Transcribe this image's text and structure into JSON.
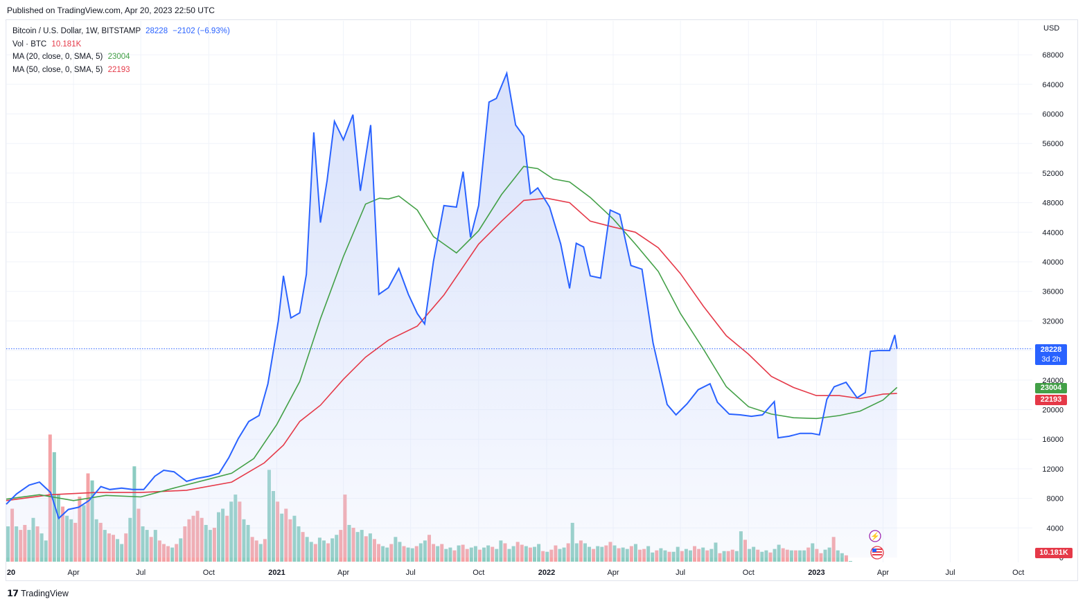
{
  "header": {
    "published": "Published on TradingView.com, Apr 20, 2023 22:50 UTC"
  },
  "legend": {
    "symbol": "Bitcoin / U.S. Dollar, 1W, BITSTAMP",
    "last_price": "28228",
    "change": "−2102 (−6.93%)",
    "vol_label": "Vol · BTC",
    "vol_value": "10.181K",
    "ma20_label": "MA (20, close, 0, SMA, 5)",
    "ma20_value": "23004",
    "ma50_label": "MA (50, close, 0, SMA, 5)",
    "ma50_value": "22193"
  },
  "axis": {
    "currency": "USD",
    "price_ticks": [
      "68000",
      "64000",
      "60000",
      "56000",
      "52000",
      "48000",
      "44000",
      "40000",
      "36000",
      "32000",
      "28000",
      "24000",
      "20000",
      "16000",
      "12000",
      "8000",
      "4000",
      "0"
    ],
    "time_ticks": [
      {
        "label": "20",
        "bold": true
      },
      {
        "label": "Apr",
        "bold": false
      },
      {
        "label": "Jul",
        "bold": false
      },
      {
        "label": "Oct",
        "bold": false
      },
      {
        "label": "2021",
        "bold": true
      },
      {
        "label": "Apr",
        "bold": false
      },
      {
        "label": "Jul",
        "bold": false
      },
      {
        "label": "Oct",
        "bold": false
      },
      {
        "label": "2022",
        "bold": true
      },
      {
        "label": "Apr",
        "bold": false
      },
      {
        "label": "Jul",
        "bold": false
      },
      {
        "label": "Oct",
        "bold": false
      },
      {
        "label": "2023",
        "bold": true
      },
      {
        "label": "Apr",
        "bold": false
      },
      {
        "label": "Jul",
        "bold": false
      },
      {
        "label": "Oct",
        "bold": false
      }
    ]
  },
  "tags": {
    "price": "28228",
    "countdown": "3d 2h",
    "ma20": "23004",
    "ma50": "22193",
    "volume": "10.181K"
  },
  "colors": {
    "price_line": "#2962ff",
    "area_fill": "#d6e0fb",
    "ma20": "#43a047",
    "ma50": "#e53948",
    "vol_up": "#8cccc1",
    "vol_down": "#f4a3a6",
    "grid": "#f0f3fa"
  },
  "footer": {
    "brand": "TradingView",
    "logo": "tradingview-logo-icon"
  },
  "chart_data": {
    "type": "line",
    "title": "Bitcoin / U.S. Dollar, 1W, BITSTAMP",
    "ylabel": "USD",
    "ylim": [
      0,
      70000
    ],
    "x_start": "2020-01-01",
    "x_end": "2023-10-20",
    "series": [
      {
        "name": "Bitcoin / U.S. Dollar",
        "dates": [
          "2020-01-01",
          "2020-01-15",
          "2020-02-01",
          "2020-02-15",
          "2020-03-01",
          "2020-03-12",
          "2020-03-25",
          "2020-04-08",
          "2020-04-22",
          "2020-05-08",
          "2020-05-20",
          "2020-06-05",
          "2020-06-20",
          "2020-07-05",
          "2020-07-20",
          "2020-08-01",
          "2020-08-15",
          "2020-09-01",
          "2020-09-15",
          "2020-10-01",
          "2020-10-15",
          "2020-10-28",
          "2020-11-10",
          "2020-11-24",
          "2020-12-08",
          "2020-12-20",
          "2021-01-03",
          "2021-01-10",
          "2021-01-20",
          "2021-02-01",
          "2021-02-10",
          "2021-02-20",
          "2021-03-01",
          "2021-03-10",
          "2021-03-20",
          "2021-04-01",
          "2021-04-14",
          "2021-04-24",
          "2021-05-08",
          "2021-05-19",
          "2021-06-01",
          "2021-06-15",
          "2021-06-28",
          "2021-07-10",
          "2021-07-20",
          "2021-08-01",
          "2021-08-15",
          "2021-09-01",
          "2021-09-10",
          "2021-09-20",
          "2021-10-01",
          "2021-10-15",
          "2021-10-25",
          "2021-11-08",
          "2021-11-20",
          "2021-12-01",
          "2021-12-10",
          "2021-12-20",
          "2022-01-05",
          "2022-01-20",
          "2022-02-01",
          "2022-02-10",
          "2022-02-20",
          "2022-03-01",
          "2022-03-15",
          "2022-03-28",
          "2022-04-10",
          "2022-04-25",
          "2022-05-10",
          "2022-05-25",
          "2022-06-13",
          "2022-06-25",
          "2022-07-10",
          "2022-07-25",
          "2022-08-10",
          "2022-08-20",
          "2022-09-05",
          "2022-09-20",
          "2022-10-05",
          "2022-10-20",
          "2022-11-05",
          "2022-11-10",
          "2022-11-25",
          "2022-12-10",
          "2022-12-25",
          "2023-01-05",
          "2023-01-15",
          "2023-01-25",
          "2023-02-10",
          "2023-02-25",
          "2023-03-08",
          "2023-03-15",
          "2023-03-25",
          "2023-04-10",
          "2023-04-17",
          "2023-04-20"
        ],
        "values": [
          7200,
          8600,
          9800,
          10200,
          8800,
          5300,
          6500,
          6800,
          7700,
          9600,
          9200,
          9400,
          9200,
          9200,
          11000,
          11800,
          11600,
          10300,
          10700,
          11000,
          11400,
          13500,
          16100,
          18400,
          19200,
          23500,
          32000,
          38100,
          32400,
          33100,
          38300,
          57500,
          45300,
          51000,
          59000,
          56500,
          59900,
          49600,
          58500,
          35600,
          36500,
          39100,
          35600,
          33000,
          31600,
          40100,
          47600,
          47400,
          52200,
          43300,
          47600,
          61600,
          62100,
          65500,
          58500,
          57000,
          49200,
          50000,
          47400,
          42400,
          36400,
          42500,
          42000,
          38100,
          37800,
          47000,
          46400,
          39500,
          39000,
          29000,
          20700,
          19300,
          20800,
          22700,
          23500,
          21000,
          19400,
          19300,
          19100,
          19300,
          21100,
          16200,
          16400,
          16800,
          16800,
          16600,
          21400,
          23100,
          23700,
          21600,
          22300,
          27900,
          28000,
          28000,
          30100,
          28228
        ]
      },
      {
        "name": "MA (20, close, 0, SMA, 5)",
        "dates": [
          "2020-01-01",
          "2020-02-15",
          "2020-04-01",
          "2020-05-15",
          "2020-07-01",
          "2020-08-15",
          "2020-10-01",
          "2020-11-01",
          "2020-12-01",
          "2021-01-01",
          "2021-02-01",
          "2021-03-01",
          "2021-04-01",
          "2021-05-01",
          "2021-05-20",
          "2021-06-01",
          "2021-06-15",
          "2021-07-10",
          "2021-08-01",
          "2021-09-01",
          "2021-10-01",
          "2021-11-01",
          "2021-11-20",
          "2021-12-01",
          "2021-12-20",
          "2022-01-10",
          "2022-02-01",
          "2022-03-01",
          "2022-04-01",
          "2022-05-01",
          "2022-06-01",
          "2022-07-01",
          "2022-08-01",
          "2022-09-01",
          "2022-10-01",
          "2022-11-01",
          "2022-12-01",
          "2023-01-01",
          "2023-02-01",
          "2023-03-01",
          "2023-04-01",
          "2023-04-20"
        ],
        "values": [
          7900,
          8500,
          7700,
          8400,
          8200,
          9400,
          10600,
          11400,
          13400,
          18000,
          23800,
          32300,
          40700,
          47800,
          48600,
          48500,
          48900,
          47000,
          43400,
          41200,
          44200,
          49100,
          51500,
          52900,
          52600,
          51200,
          50800,
          48700,
          45800,
          42400,
          38700,
          33000,
          28200,
          23100,
          20400,
          19400,
          18900,
          18800,
          19200,
          19800,
          21300,
          23004
        ]
      },
      {
        "name": "MA (50, close, 0, SMA, 5)",
        "dates": [
          "2020-01-01",
          "2020-03-01",
          "2020-05-01",
          "2020-07-01",
          "2020-09-01",
          "2020-11-01",
          "2020-12-15",
          "2021-01-10",
          "2021-02-01",
          "2021-03-01",
          "2021-04-01",
          "2021-05-01",
          "2021-06-01",
          "2021-07-10",
          "2021-08-15",
          "2021-10-01",
          "2021-11-01",
          "2021-12-01",
          "2022-01-01",
          "2022-02-01",
          "2022-03-01",
          "2022-04-01",
          "2022-05-01",
          "2022-06-01",
          "2022-07-01",
          "2022-08-01",
          "2022-09-01",
          "2022-10-01",
          "2022-11-01",
          "2022-12-01",
          "2023-01-01",
          "2023-02-01",
          "2023-03-01",
          "2023-04-01",
          "2023-04-20"
        ],
        "values": [
          7700,
          8500,
          8800,
          8800,
          9100,
          10200,
          12800,
          15200,
          18400,
          20600,
          24100,
          27100,
          29400,
          31300,
          35500,
          42400,
          45500,
          48300,
          48600,
          48000,
          45500,
          44700,
          44000,
          41900,
          38400,
          34000,
          30000,
          27500,
          24500,
          23000,
          21900,
          21900,
          21500,
          22100,
          22193
        ]
      },
      {
        "name": "Vol · BTC",
        "values": [
          5,
          7.5,
          5,
          4.5,
          5.2,
          4.5,
          6.2,
          5,
          4,
          3,
          18,
          15.5,
          9.5,
          7.8,
          6.5,
          6,
          5.5,
          9.2,
          8,
          12.5,
          11.5,
          6,
          5.5,
          4.5,
          4,
          3.8,
          3.2,
          2.5,
          4,
          6.2,
          13.5,
          7.5,
          5,
          4.5,
          3.5,
          4.5,
          3,
          2.5,
          2.2,
          2,
          2.5,
          3.3,
          5,
          6,
          6.5,
          7.2,
          6.2,
          5.2,
          4.5,
          4.8,
          7,
          7.5,
          6.5,
          8.5,
          9.5,
          8.5,
          6,
          5.2,
          3.5,
          3,
          2.5,
          3.2,
          13,
          10,
          8.5,
          6.8,
          7.5,
          6,
          6.5,
          5,
          4.2,
          3.5,
          2.8,
          2.5,
          3.4,
          3,
          2.6,
          3.3,
          3.8,
          4.5,
          9.5,
          5.2,
          4.8,
          4.2,
          4.5,
          3.6,
          4,
          3.2,
          2.5,
          2.2,
          2,
          2.5,
          3.5,
          2.8,
          2.2,
          2,
          1.9,
          2.2,
          2.6,
          3,
          3.8,
          2.5,
          2.2,
          2.5,
          1.8,
          2,
          1.6,
          2.3,
          2.4,
          1.8,
          2,
          2.2,
          1.7,
          2,
          2.3,
          2.1,
          1.8,
          3,
          2.6,
          1.8,
          2.2,
          2.8,
          2.4,
          2.2,
          2,
          2.1,
          2.5,
          1.5,
          1.4,
          1.7,
          2.3,
          1.8,
          2,
          2.6,
          5.5,
          2.6,
          3,
          2.6,
          2.1,
          1.8,
          2.2,
          2.1,
          2.3,
          2.8,
          2.3,
          1.9,
          2,
          1.8,
          2.2,
          2.5,
          1.7,
          1.8,
          2.2,
          1.3,
          1.6,
          1.9,
          1.6,
          1.4,
          1.4,
          2.1,
          1.5,
          1.8,
          1.6,
          2.2,
          1.8,
          2,
          1.6,
          1.8,
          2.7,
          1.2,
          1.5,
          1.5,
          1.7,
          1.5,
          4.3,
          3.1,
          1.8,
          2.1,
          1.7,
          1.4,
          1.6,
          1.3,
          1.8,
          2.4,
          1.9,
          1.7,
          1.6,
          1.6,
          1.6,
          1.6,
          2,
          2.6,
          1.8,
          1.2,
          1.7,
          2,
          3.5,
          1.6,
          1.2,
          0.9,
          0.1
        ],
        "unit": "thousand BTC"
      }
    ],
    "last_close": 28228,
    "change": -2102,
    "change_pct": -6.93
  }
}
